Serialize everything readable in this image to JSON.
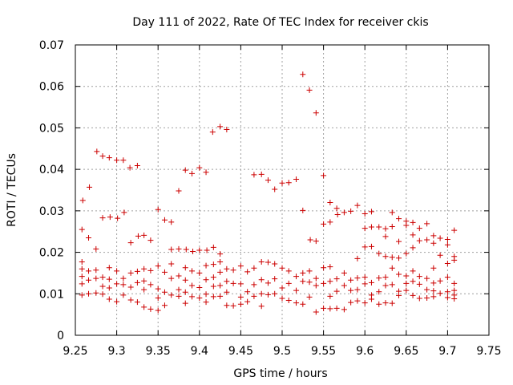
{
  "chart_data": {
    "type": "scatter",
    "title": "Day 111 of 2022, Rate Of TEC Index for receiver ckis",
    "xlabel": "GPS time / hours",
    "ylabel": "ROTI / TECUs",
    "xlim": [
      9.25,
      9.75
    ],
    "ylim": [
      0,
      0.07
    ],
    "x_ticks": [
      "9.25",
      "9.3",
      "9.35",
      "9.4",
      "9.45",
      "9.5",
      "9.55",
      "9.6",
      "9.65",
      "9.7",
      "9.75"
    ],
    "y_ticks": [
      "0",
      "0.01",
      "0.02",
      "0.03",
      "0.04",
      "0.05",
      "0.06",
      "0.07"
    ],
    "grid": true,
    "marker": "plus",
    "color": "#cc0000",
    "series": [
      {
        "points": [
          [
            9.258,
            0.0255
          ],
          [
            9.259,
            0.0325
          ],
          [
            9.266,
            0.0235
          ],
          [
            9.267,
            0.0357
          ],
          [
            9.275,
            0.0208
          ],
          [
            9.276,
            0.0443
          ],
          [
            9.283,
            0.0432
          ],
          [
            9.283,
            0.0283
          ],
          [
            9.291,
            0.0428
          ],
          [
            9.292,
            0.0285
          ],
          [
            9.3,
            0.0422
          ],
          [
            9.301,
            0.0282
          ],
          [
            9.308,
            0.0422
          ],
          [
            9.309,
            0.0296
          ],
          [
            9.316,
            0.0404
          ],
          [
            9.317,
            0.0223
          ],
          [
            9.325,
            0.0409
          ],
          [
            9.326,
            0.0239
          ],
          [
            9.333,
            0.0241
          ],
          [
            9.341,
            0.0229
          ],
          [
            9.35,
            0.0303
          ],
          [
            9.358,
            0.0278
          ],
          [
            9.366,
            0.0273
          ],
          [
            9.366,
            0.0207
          ],
          [
            9.375,
            0.0348
          ],
          [
            9.375,
            0.0208
          ],
          [
            9.383,
            0.0398
          ],
          [
            9.384,
            0.0207
          ],
          [
            9.391,
            0.039
          ],
          [
            9.392,
            0.0202
          ],
          [
            9.4,
            0.0404
          ],
          [
            9.4,
            0.0205
          ],
          [
            9.408,
            0.0393
          ],
          [
            9.409,
            0.0205
          ],
          [
            9.416,
            0.049
          ],
          [
            9.417,
            0.0212
          ],
          [
            9.425,
            0.0503
          ],
          [
            9.425,
            0.0196
          ],
          [
            9.433,
            0.0496
          ],
          [
            9.466,
            0.0387
          ],
          [
            9.475,
            0.0388
          ],
          [
            9.483,
            0.0374
          ],
          [
            9.491,
            0.0352
          ],
          [
            9.5,
            0.0367
          ],
          [
            9.508,
            0.0368
          ],
          [
            9.517,
            0.0376
          ],
          [
            9.525,
            0.0629
          ],
          [
            9.525,
            0.0301
          ],
          [
            9.533,
            0.0591
          ],
          [
            9.534,
            0.023
          ],
          [
            9.541,
            0.0536
          ],
          [
            9.541,
            0.0227
          ],
          [
            9.55,
            0.0385
          ],
          [
            9.55,
            0.0268
          ],
          [
            9.558,
            0.032
          ],
          [
            9.558,
            0.0273
          ],
          [
            9.566,
            0.0306
          ],
          [
            9.567,
            0.0291
          ],
          [
            9.575,
            0.0296
          ],
          [
            9.583,
            0.0299
          ],
          [
            9.591,
            0.0313
          ],
          [
            9.591,
            0.0185
          ],
          [
            9.6,
            0.0293
          ],
          [
            9.6,
            0.0258
          ],
          [
            9.6,
            0.0213
          ],
          [
            9.608,
            0.0298
          ],
          [
            9.608,
            0.0261
          ],
          [
            9.608,
            0.0214
          ],
          [
            9.617,
            0.0261
          ],
          [
            9.617,
            0.0197
          ],
          [
            9.625,
            0.0257
          ],
          [
            9.625,
            0.0238
          ],
          [
            9.625,
            0.019
          ],
          [
            9.633,
            0.0296
          ],
          [
            9.633,
            0.0262
          ],
          [
            9.633,
            0.0188
          ],
          [
            9.641,
            0.0281
          ],
          [
            9.641,
            0.0226
          ],
          [
            9.641,
            0.0186
          ],
          [
            9.65,
            0.0275
          ],
          [
            9.65,
            0.0265
          ],
          [
            9.65,
            0.0197
          ],
          [
            9.658,
            0.0272
          ],
          [
            9.658,
            0.0242
          ],
          [
            9.658,
            0.0211
          ],
          [
            9.666,
            0.0258
          ],
          [
            9.666,
            0.0228
          ],
          [
            9.675,
            0.0269
          ],
          [
            9.675,
            0.023
          ],
          [
            9.683,
            0.024
          ],
          [
            9.683,
            0.0222
          ],
          [
            9.683,
            0.0162
          ],
          [
            9.691,
            0.0234
          ],
          [
            9.691,
            0.0193
          ],
          [
            9.7,
            0.0231
          ],
          [
            9.7,
            0.0218
          ],
          [
            9.7,
            0.0173
          ],
          [
            9.708,
            0.0253
          ],
          [
            9.708,
            0.019
          ],
          [
            9.708,
            0.0181
          ],
          [
            9.258,
            0.0177
          ],
          [
            9.258,
            0.016
          ],
          [
            9.258,
            0.0142
          ],
          [
            9.258,
            0.0124
          ],
          [
            9.258,
            0.0097
          ],
          [
            9.266,
            0.0155
          ],
          [
            9.266,
            0.0133
          ],
          [
            9.266,
            0.01
          ],
          [
            9.275,
            0.0157
          ],
          [
            9.275,
            0.0137
          ],
          [
            9.275,
            0.0102
          ],
          [
            9.283,
            0.014
          ],
          [
            9.283,
            0.0118
          ],
          [
            9.283,
            0.0099
          ],
          [
            9.291,
            0.0163
          ],
          [
            9.291,
            0.0135
          ],
          [
            9.291,
            0.0114
          ],
          [
            9.291,
            0.0087
          ],
          [
            9.3,
            0.0155
          ],
          [
            9.3,
            0.0124
          ],
          [
            9.3,
            0.0081
          ],
          [
            9.308,
            0.0137
          ],
          [
            9.308,
            0.0122
          ],
          [
            9.308,
            0.0097
          ],
          [
            9.317,
            0.015
          ],
          [
            9.317,
            0.0116
          ],
          [
            9.317,
            0.0085
          ],
          [
            9.325,
            0.0154
          ],
          [
            9.325,
            0.0127
          ],
          [
            9.325,
            0.008
          ],
          [
            9.333,
            0.016
          ],
          [
            9.333,
            0.0131
          ],
          [
            9.333,
            0.011
          ],
          [
            9.333,
            0.0068
          ],
          [
            9.341,
            0.0156
          ],
          [
            9.341,
            0.0122
          ],
          [
            9.341,
            0.0063
          ],
          [
            9.35,
            0.0167
          ],
          [
            9.35,
            0.0112
          ],
          [
            9.35,
            0.009
          ],
          [
            9.35,
            0.006
          ],
          [
            9.358,
            0.0152
          ],
          [
            9.358,
            0.0104
          ],
          [
            9.358,
            0.0072
          ],
          [
            9.366,
            0.0172
          ],
          [
            9.366,
            0.0137
          ],
          [
            9.366,
            0.0097
          ],
          [
            9.375,
            0.0143
          ],
          [
            9.375,
            0.011
          ],
          [
            9.375,
            0.0094
          ],
          [
            9.383,
            0.0163
          ],
          [
            9.383,
            0.0133
          ],
          [
            9.383,
            0.0104
          ],
          [
            9.383,
            0.0077
          ],
          [
            9.391,
            0.0155
          ],
          [
            9.391,
            0.012
          ],
          [
            9.391,
            0.0093
          ],
          [
            9.4,
            0.015
          ],
          [
            9.4,
            0.0115
          ],
          [
            9.4,
            0.009
          ],
          [
            9.408,
            0.0168
          ],
          [
            9.408,
            0.0134
          ],
          [
            9.408,
            0.0099
          ],
          [
            9.408,
            0.008
          ],
          [
            9.417,
            0.0171
          ],
          [
            9.417,
            0.014
          ],
          [
            9.417,
            0.0118
          ],
          [
            9.417,
            0.0093
          ],
          [
            9.425,
            0.0177
          ],
          [
            9.425,
            0.0152
          ],
          [
            9.425,
            0.012
          ],
          [
            9.425,
            0.0094
          ],
          [
            9.433,
            0.016
          ],
          [
            9.433,
            0.013
          ],
          [
            9.433,
            0.0104
          ],
          [
            9.433,
            0.0072
          ],
          [
            9.441,
            0.0157
          ],
          [
            9.441,
            0.0125
          ],
          [
            9.441,
            0.0071
          ],
          [
            9.45,
            0.0167
          ],
          [
            9.45,
            0.0124
          ],
          [
            9.45,
            0.0092
          ],
          [
            9.45,
            0.0075
          ],
          [
            9.458,
            0.0153
          ],
          [
            9.458,
            0.0105
          ],
          [
            9.458,
            0.0081
          ],
          [
            9.466,
            0.0162
          ],
          [
            9.466,
            0.0122
          ],
          [
            9.466,
            0.0094
          ],
          [
            9.475,
            0.0177
          ],
          [
            9.475,
            0.0134
          ],
          [
            9.475,
            0.01
          ],
          [
            9.475,
            0.007
          ],
          [
            9.483,
            0.0176
          ],
          [
            9.483,
            0.0126
          ],
          [
            9.483,
            0.0098
          ],
          [
            9.491,
            0.0172
          ],
          [
            9.491,
            0.0136
          ],
          [
            9.491,
            0.01
          ],
          [
            9.5,
            0.0162
          ],
          [
            9.5,
            0.0114
          ],
          [
            9.5,
            0.0089
          ],
          [
            9.508,
            0.0155
          ],
          [
            9.508,
            0.0125
          ],
          [
            9.508,
            0.0084
          ],
          [
            9.517,
            0.0142
          ],
          [
            9.517,
            0.0108
          ],
          [
            9.517,
            0.0078
          ],
          [
            9.525,
            0.015
          ],
          [
            9.525,
            0.013
          ],
          [
            9.525,
            0.0075
          ],
          [
            9.533,
            0.0155
          ],
          [
            9.533,
            0.0128
          ],
          [
            9.533,
            0.0092
          ],
          [
            9.541,
            0.0137
          ],
          [
            9.541,
            0.012
          ],
          [
            9.541,
            0.0056
          ],
          [
            9.55,
            0.0163
          ],
          [
            9.55,
            0.0125
          ],
          [
            9.55,
            0.0065
          ],
          [
            9.558,
            0.0165
          ],
          [
            9.558,
            0.013
          ],
          [
            9.558,
            0.0094
          ],
          [
            9.558,
            0.0064
          ],
          [
            9.566,
            0.0136
          ],
          [
            9.566,
            0.0106
          ],
          [
            9.566,
            0.0065
          ],
          [
            9.575,
            0.015
          ],
          [
            9.575,
            0.012
          ],
          [
            9.575,
            0.0062
          ],
          [
            9.583,
            0.0133
          ],
          [
            9.583,
            0.0108
          ],
          [
            9.583,
            0.0079
          ],
          [
            9.591,
            0.0138
          ],
          [
            9.591,
            0.011
          ],
          [
            9.591,
            0.0083
          ],
          [
            9.6,
            0.014
          ],
          [
            9.6,
            0.0124
          ],
          [
            9.6,
            0.0078
          ],
          [
            9.608,
            0.0127
          ],
          [
            9.608,
            0.0097
          ],
          [
            9.608,
            0.0087
          ],
          [
            9.617,
            0.0138
          ],
          [
            9.617,
            0.0105
          ],
          [
            9.617,
            0.0075
          ],
          [
            9.625,
            0.014
          ],
          [
            9.625,
            0.012
          ],
          [
            9.625,
            0.0078
          ],
          [
            9.633,
            0.0162
          ],
          [
            9.633,
            0.0122
          ],
          [
            9.633,
            0.0077
          ],
          [
            9.641,
            0.0147
          ],
          [
            9.641,
            0.0106
          ],
          [
            9.641,
            0.0096
          ],
          [
            9.65,
            0.0143
          ],
          [
            9.65,
            0.0125
          ],
          [
            9.65,
            0.0108
          ],
          [
            9.658,
            0.0155
          ],
          [
            9.658,
            0.013
          ],
          [
            9.658,
            0.0096
          ],
          [
            9.666,
            0.0142
          ],
          [
            9.666,
            0.0123
          ],
          [
            9.666,
            0.0089
          ],
          [
            9.675,
            0.0137
          ],
          [
            9.675,
            0.011
          ],
          [
            9.675,
            0.009
          ],
          [
            9.683,
            0.0126
          ],
          [
            9.683,
            0.0107
          ],
          [
            9.683,
            0.0093
          ],
          [
            9.691,
            0.0131
          ],
          [
            9.691,
            0.0101
          ],
          [
            9.7,
            0.014
          ],
          [
            9.7,
            0.0105
          ],
          [
            9.7,
            0.0091
          ],
          [
            9.708,
            0.0125
          ],
          [
            9.708,
            0.0108
          ],
          [
            9.708,
            0.0097
          ],
          [
            9.708,
            0.0088
          ]
        ]
      }
    ]
  }
}
